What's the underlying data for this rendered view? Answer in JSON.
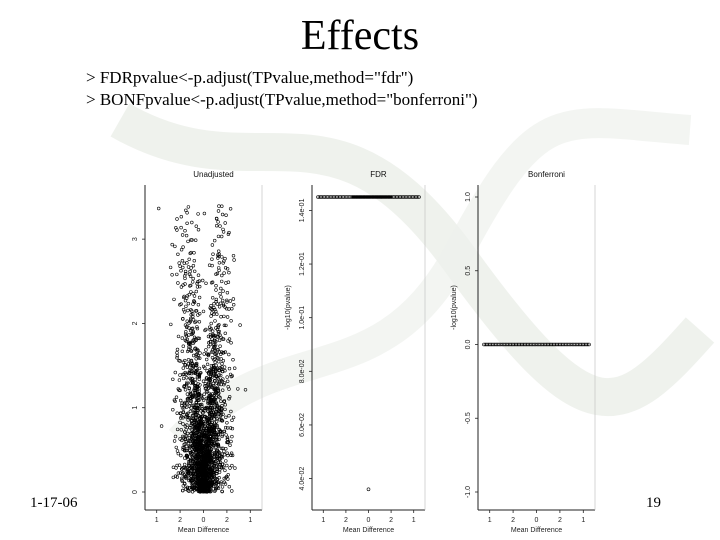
{
  "slide": {
    "title": "Effects",
    "code_lines": [
      "> FDRpvalue<-p.adjust(TPvalue,method=\"fdr\")",
      "> BONFpvalue<-p.adjust(TPvalue,method=\"bonferroni\")"
    ],
    "date": "1-17-06",
    "page_number": "19"
  },
  "chart_data": [
    {
      "type": "scatter",
      "title": "Unadjusted",
      "xlabel": "Mean Difference",
      "ylabel": "",
      "x_ticks": [
        "1",
        "2",
        "0",
        "2",
        "1"
      ],
      "y_ticks": [
        "0",
        "1",
        "2",
        "3"
      ],
      "ylim": [
        0,
        3.5
      ],
      "description_points": "volcano: dense cloud centered at 0, spreading up to ~3.4"
    },
    {
      "type": "scatter",
      "title": "FDR",
      "xlabel": "Mean Difference",
      "ylabel": "-log10(pvalue)",
      "x_ticks": [
        "1",
        "2",
        "0",
        "2",
        "1"
      ],
      "y_ticks": [
        "4.0e-02",
        "6.0e-02",
        "8.0e-02",
        "1.0e-01",
        "1.2e-01",
        "1.4e-01"
      ],
      "ylim": [
        0.035,
        0.145
      ],
      "band_value": 0.145,
      "outlier_value": 0.036
    },
    {
      "type": "scatter",
      "title": "Bonferroni",
      "xlabel": "Mean Difference",
      "ylabel": "-log10(pvalue)",
      "x_ticks": [
        "1",
        "2",
        "0",
        "2",
        "1"
      ],
      "y_ticks": [
        "-1.0",
        "-0.5",
        "0.0",
        "0.5",
        "1.0"
      ],
      "ylim": [
        -1.0,
        1.0
      ],
      "band_value": 0.0
    }
  ]
}
